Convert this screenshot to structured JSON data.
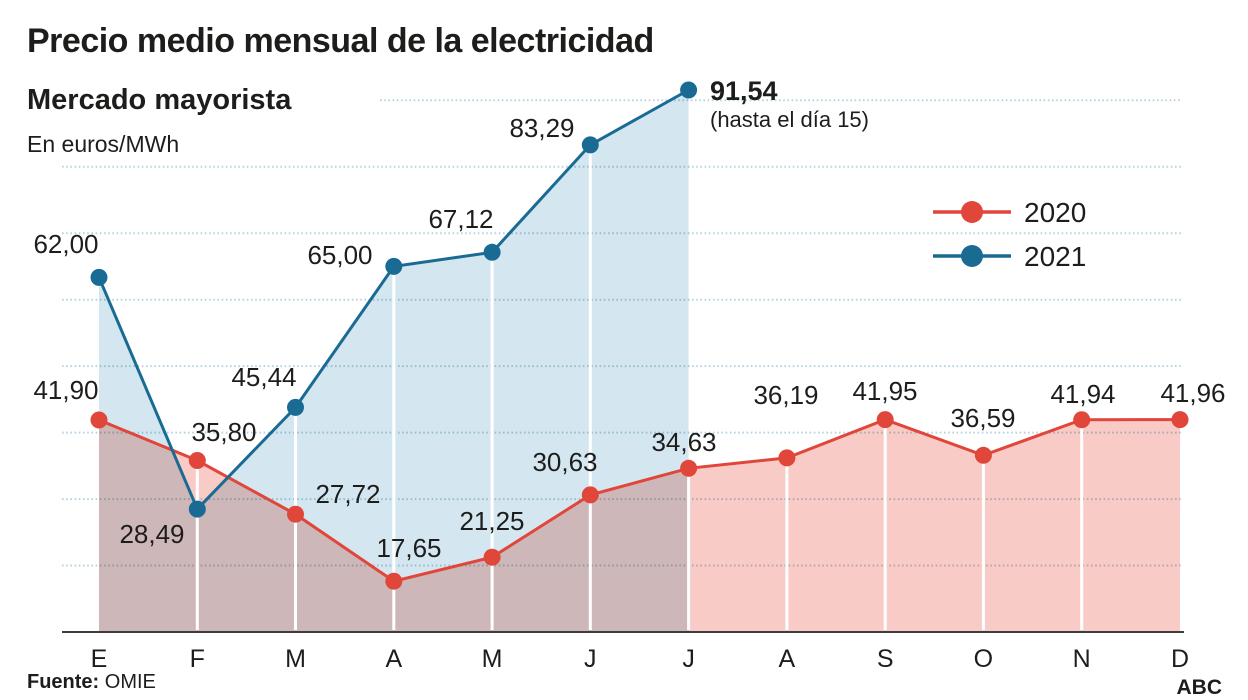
{
  "header": {
    "title": "Precio medio mensual de la electricidad",
    "subtitle": "Mercado mayorista",
    "unit": "En euros/MWh"
  },
  "footer": {
    "source_label": "Fuente:",
    "source_value": "OMIE",
    "brand": "ABC"
  },
  "colors": {
    "red": "#e0463a",
    "blue": "#1a6b94",
    "red_fill": "#f8cbc6",
    "blue_fill": "#d4e6ef",
    "grid": "#b7d3df",
    "axis": "#3d3d3d",
    "text": "#1d1d1b"
  },
  "chart_data": {
    "type": "line",
    "title": "Precio medio mensual de la electricidad",
    "subtitle": "Mercado mayorista",
    "ylabel": "En euros/MWh",
    "categories": [
      "E",
      "F",
      "M",
      "A",
      "M",
      "J",
      "J",
      "A",
      "S",
      "O",
      "N",
      "D"
    ],
    "series": [
      {
        "name": "2020",
        "color": "#e0463a",
        "fill": "#f8cbc6",
        "values": [
          41.9,
          35.8,
          27.72,
          17.65,
          21.25,
          30.63,
          34.63,
          36.19,
          41.95,
          36.59,
          41.94,
          41.96
        ],
        "labels": [
          "41,90",
          "35,80",
          "27,72",
          "17,65",
          "21,25",
          "30,63",
          "34,63",
          "36,19",
          "41,95",
          "36,59",
          "41,94",
          "41,96"
        ]
      },
      {
        "name": "2021",
        "color": "#1a6b94",
        "fill": "#d4e6ef",
        "values": [
          62.0,
          28.49,
          45.44,
          65.0,
          67.12,
          83.29,
          91.54
        ],
        "labels": [
          "62,00",
          "28,49",
          "45,44",
          "65,00",
          "67,12",
          "83,29",
          "91,54"
        ],
        "last_point_note": "(hasta el día 15)"
      }
    ],
    "ylim": [
      10,
      95
    ],
    "gridlines": [
      20,
      30,
      40,
      50,
      60,
      70,
      80,
      90
    ],
    "grid": "dotted horizontal",
    "legend_position": "right"
  }
}
